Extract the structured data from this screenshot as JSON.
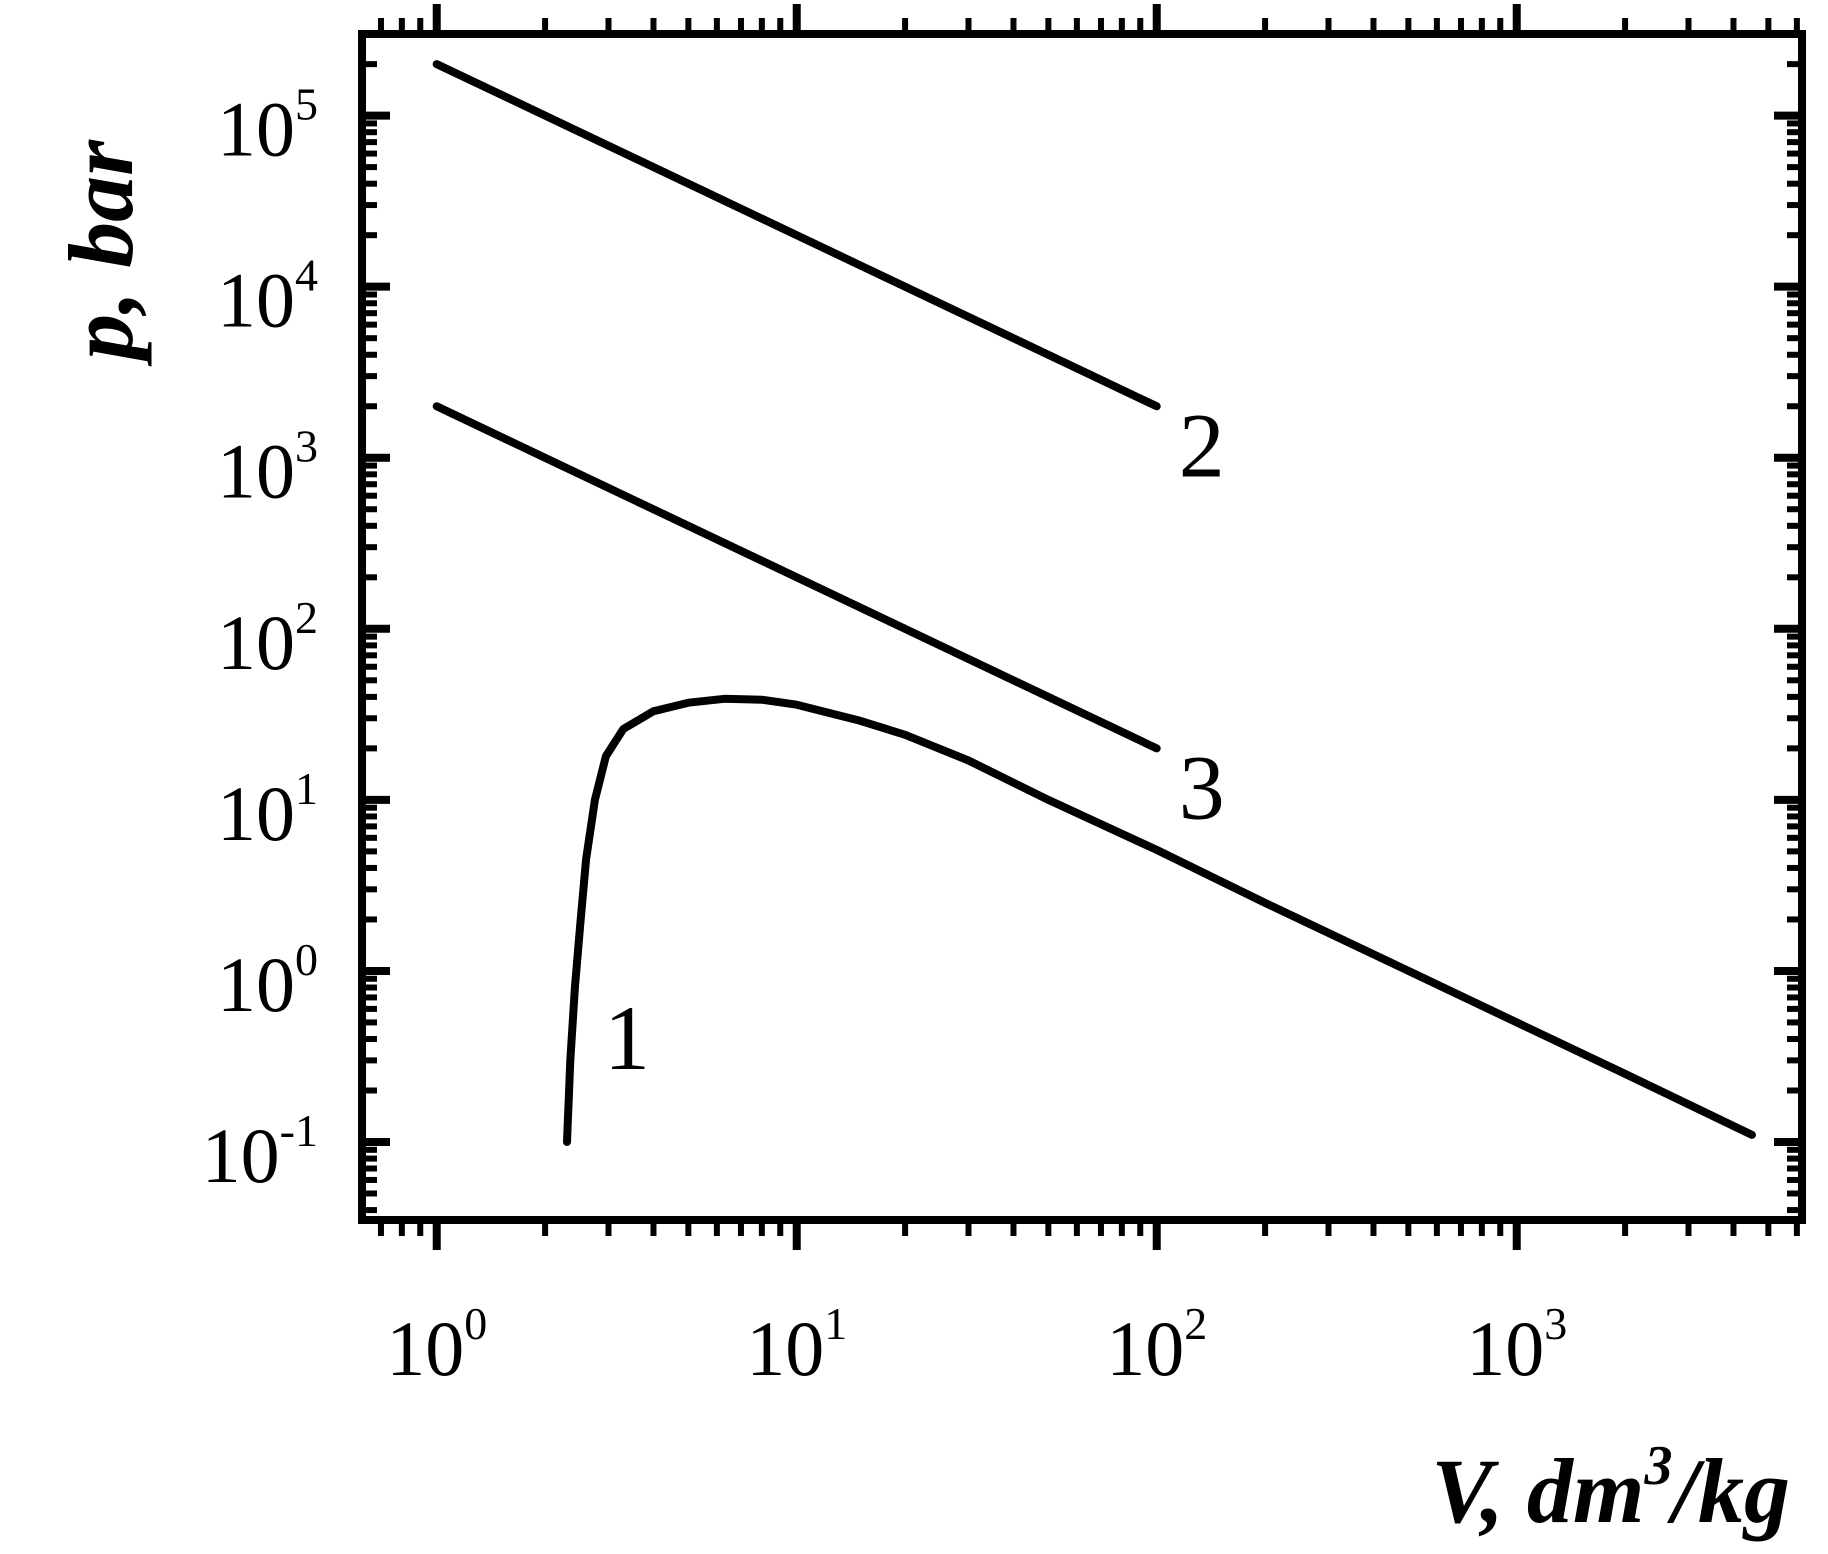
{
  "chart_data": {
    "type": "line",
    "x_scale": "log",
    "y_scale": "log",
    "xlim": [
      0.62,
      6200
    ],
    "ylim": [
      0.035,
      300000
    ],
    "xlabel": {
      "main": "V,  dm",
      "sup": "3",
      "after": "/kg"
    },
    "ylabel": "p, bar",
    "x_ticks": [
      {
        "base": "10",
        "exp": "0",
        "value": 1
      },
      {
        "base": "10",
        "exp": "1",
        "value": 10
      },
      {
        "base": "10",
        "exp": "2",
        "value": 100
      },
      {
        "base": "10",
        "exp": "3",
        "value": 1000
      }
    ],
    "y_ticks": [
      {
        "base": "10",
        "exp": "-1",
        "value": 0.1
      },
      {
        "base": "10",
        "exp": "0",
        "value": 1
      },
      {
        "base": "10",
        "exp": "1",
        "value": 10
      },
      {
        "base": "10",
        "exp": "2",
        "value": 100
      },
      {
        "base": "10",
        "exp": "3",
        "value": 1000
      },
      {
        "base": "10",
        "exp": "4",
        "value": 10000
      },
      {
        "base": "10",
        "exp": "5",
        "value": 100000
      }
    ],
    "grid": false,
    "line_color": "#000000",
    "series": [
      {
        "label": "1",
        "points": [
          [
            2.3,
            0.1
          ],
          [
            2.35,
            0.3
          ],
          [
            2.42,
            0.8
          ],
          [
            2.5,
            1.8
          ],
          [
            2.6,
            4.5
          ],
          [
            2.75,
            10
          ],
          [
            2.95,
            18
          ],
          [
            3.3,
            26
          ],
          [
            4,
            33
          ],
          [
            5,
            37
          ],
          [
            6.3,
            39
          ],
          [
            8,
            38.5
          ],
          [
            10,
            36
          ],
          [
            15,
            29
          ],
          [
            20,
            24
          ],
          [
            30,
            17
          ],
          [
            50,
            10
          ],
          [
            100,
            5.1
          ],
          [
            200,
            2.5
          ],
          [
            500,
            1
          ],
          [
            1000,
            0.5
          ],
          [
            2000,
            0.25
          ],
          [
            4500,
            0.11
          ]
        ]
      },
      {
        "label": "2",
        "points": [
          [
            1,
            200000
          ],
          [
            100,
            2000
          ]
        ]
      },
      {
        "label": "3",
        "points": [
          [
            1,
            2000
          ],
          [
            100,
            20
          ]
        ]
      }
    ]
  }
}
